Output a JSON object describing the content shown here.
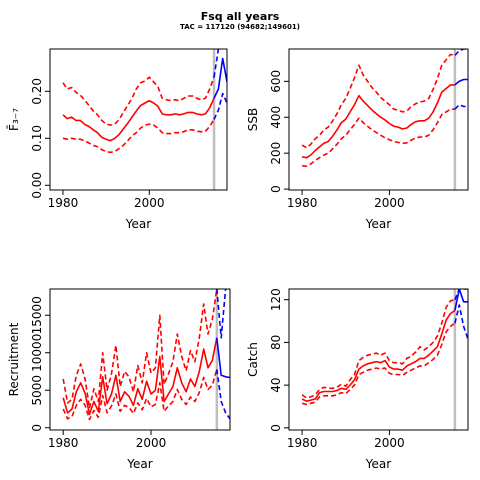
{
  "title": "Fsq all years",
  "subtitle": "TAC = 117120 (94682;149601)",
  "chart_data": [
    {
      "type": "line",
      "ylabel": "F̄₃₋₇",
      "xlabel": "Year",
      "xlim": [
        1977,
        2018
      ],
      "ylim": [
        -0.01,
        0.29
      ],
      "xticks": [
        1980,
        2000
      ],
      "yticks": [
        0.0,
        0.1,
        0.2
      ],
      "ytick_labels": [
        "0.00",
        "0.10",
        "0.20"
      ],
      "assessment_year": 2015,
      "x": [
        1980,
        1981,
        1982,
        1983,
        1984,
        1985,
        1986,
        1987,
        1988,
        1989,
        1990,
        1991,
        1992,
        1993,
        1994,
        1995,
        1996,
        1997,
        1998,
        1999,
        2000,
        2001,
        2002,
        2003,
        2004,
        2005,
        2006,
        2007,
        2008,
        2009,
        2010,
        2011,
        2012,
        2013,
        2014,
        2015
      ],
      "series": [
        {
          "role": "estimate",
          "color": "#ff0000",
          "dash": false,
          "values": [
            0.15,
            0.142,
            0.145,
            0.138,
            0.138,
            0.13,
            0.125,
            0.118,
            0.112,
            0.102,
            0.098,
            0.095,
            0.1,
            0.108,
            0.12,
            0.132,
            0.145,
            0.158,
            0.17,
            0.175,
            0.18,
            0.175,
            0.168,
            0.152,
            0.15,
            0.15,
            0.152,
            0.15,
            0.152,
            0.155,
            0.155,
            0.152,
            0.15,
            0.152,
            0.165,
            0.185
          ]
        },
        {
          "role": "upper",
          "color": "#ff0000",
          "dash": true,
          "values": [
            0.218,
            0.205,
            0.208,
            0.198,
            0.192,
            0.182,
            0.17,
            0.158,
            0.15,
            0.138,
            0.13,
            0.128,
            0.13,
            0.14,
            0.155,
            0.17,
            0.185,
            0.205,
            0.218,
            0.222,
            0.23,
            0.22,
            0.21,
            0.185,
            0.182,
            0.18,
            0.182,
            0.18,
            0.185,
            0.19,
            0.19,
            0.185,
            0.182,
            0.185,
            0.205,
            0.23
          ]
        },
        {
          "role": "lower",
          "color": "#ff0000",
          "dash": true,
          "values": [
            0.1,
            0.098,
            0.1,
            0.098,
            0.098,
            0.095,
            0.09,
            0.085,
            0.082,
            0.076,
            0.072,
            0.07,
            0.072,
            0.078,
            0.085,
            0.095,
            0.105,
            0.112,
            0.122,
            0.128,
            0.13,
            0.128,
            0.122,
            0.112,
            0.11,
            0.11,
            0.112,
            0.112,
            0.114,
            0.118,
            0.118,
            0.115,
            0.114,
            0.115,
            0.125,
            0.14
          ]
        }
      ],
      "projection": {
        "x": [
          2015,
          2016,
          2017,
          2018
        ],
        "series": [
          {
            "role": "estimate",
            "color": "#0000ff",
            "dash": false,
            "values": [
              0.185,
              0.205,
              0.27,
              0.22
            ]
          },
          {
            "role": "upper",
            "color": "#0000ff",
            "dash": true,
            "values": [
              0.23,
              0.29,
              0.3,
              0.3
            ]
          },
          {
            "role": "lower",
            "color": "#0000ff",
            "dash": true,
            "values": [
              0.14,
              0.16,
              0.195,
              0.175
            ]
          }
        ]
      }
    },
    {
      "type": "line",
      "ylabel": "SSB",
      "xlabel": "Year",
      "xlim": [
        1977,
        2018
      ],
      "ylim": [
        -5,
        780
      ],
      "xticks": [
        1980,
        2000
      ],
      "yticks": [
        0,
        200,
        400,
        600
      ],
      "ytick_labels": [
        "0",
        "200",
        "400",
        "600"
      ],
      "assessment_year": 2015,
      "x": [
        1980,
        1981,
        1982,
        1983,
        1984,
        1985,
        1986,
        1987,
        1988,
        1989,
        1990,
        1991,
        1992,
        1993,
        1994,
        1995,
        1996,
        1997,
        1998,
        1999,
        2000,
        2001,
        2002,
        2003,
        2004,
        2005,
        2006,
        2007,
        2008,
        2009,
        2010,
        2011,
        2012,
        2013,
        2014,
        2015
      ],
      "series": [
        {
          "role": "estimate",
          "color": "#ff0000",
          "dash": false,
          "values": [
            180,
            175,
            190,
            215,
            235,
            255,
            265,
            295,
            330,
            370,
            390,
            430,
            470,
            520,
            490,
            465,
            440,
            420,
            400,
            385,
            365,
            350,
            345,
            335,
            340,
            360,
            375,
            380,
            380,
            395,
            430,
            480,
            540,
            560,
            580,
            580
          ]
        },
        {
          "role": "upper",
          "color": "#ff0000",
          "dash": true,
          "values": [
            245,
            230,
            250,
            280,
            300,
            330,
            345,
            380,
            420,
            470,
            505,
            560,
            620,
            690,
            635,
            600,
            565,
            540,
            510,
            490,
            470,
            445,
            440,
            430,
            435,
            460,
            475,
            485,
            490,
            505,
            555,
            615,
            690,
            720,
            750,
            745
          ]
        },
        {
          "role": "lower",
          "color": "#ff0000",
          "dash": true,
          "values": [
            130,
            128,
            140,
            160,
            175,
            190,
            200,
            225,
            250,
            280,
            300,
            330,
            360,
            395,
            370,
            350,
            330,
            315,
            300,
            285,
            275,
            265,
            260,
            255,
            258,
            272,
            285,
            290,
            290,
            300,
            330,
            370,
            415,
            430,
            445,
            445
          ]
        }
      ],
      "projection": {
        "x": [
          2015,
          2016,
          2017,
          2018
        ],
        "series": [
          {
            "role": "estimate",
            "color": "#0000ff",
            "dash": false,
            "values": [
              580,
              600,
              610,
              610
            ]
          },
          {
            "role": "upper",
            "color": "#0000ff",
            "dash": true,
            "values": [
              745,
              770,
              780,
              780
            ]
          },
          {
            "role": "lower",
            "color": "#0000ff",
            "dash": true,
            "values": [
              445,
              470,
              460,
              460
            ]
          }
        ]
      }
    },
    {
      "type": "line",
      "ylabel": "Recruitment",
      "xlabel": "Year",
      "xlim": [
        1977,
        2018
      ],
      "ylim": [
        -300,
        18500
      ],
      "xticks": [
        1980,
        2000
      ],
      "yticks": [
        0,
        5000,
        10000,
        15000
      ],
      "ytick_labels": [
        "0",
        "5000",
        "10000",
        "15000"
      ],
      "assessment_year": 2015,
      "x": [
        1980,
        1981,
        1982,
        1983,
        1984,
        1985,
        1986,
        1987,
        1988,
        1989,
        1990,
        1991,
        1992,
        1993,
        1994,
        1995,
        1996,
        1997,
        1998,
        1999,
        2000,
        2001,
        2002,
        2003,
        2004,
        2005,
        2006,
        2007,
        2008,
        2009,
        2010,
        2011,
        2012,
        2013,
        2014,
        2015
      ],
      "series": [
        {
          "role": "estimate",
          "color": "#ff0000",
          "dash": false,
          "values": [
            4000,
            2000,
            2500,
            4800,
            6000,
            4600,
            1800,
            3500,
            2200,
            6800,
            3200,
            4500,
            7000,
            3500,
            4800,
            4200,
            3000,
            5200,
            3800,
            6200,
            4500,
            5000,
            9500,
            3500,
            4500,
            5500,
            8000,
            6000,
            4800,
            6500,
            5500,
            7500,
            10500,
            8000,
            9000,
            12000
          ]
        },
        {
          "role": "upper",
          "color": "#ff0000",
          "dash": true,
          "values": [
            6500,
            3300,
            3800,
            7000,
            8500,
            6500,
            2600,
            5200,
            3500,
            10000,
            5000,
            7200,
            11000,
            5500,
            7500,
            6800,
            4800,
            8300,
            6000,
            10000,
            7300,
            8000,
            15000,
            5800,
            7200,
            8800,
            12500,
            9500,
            7600,
            10300,
            8800,
            12000,
            16500,
            12500,
            14500,
            18500
          ]
        },
        {
          "role": "lower",
          "color": "#ff0000",
          "dash": true,
          "values": [
            2500,
            1200,
            1500,
            3000,
            3800,
            3000,
            1100,
            2300,
            1400,
            4300,
            2000,
            2900,
            4500,
            2200,
            3000,
            2700,
            1900,
            3300,
            2400,
            3900,
            2800,
            3100,
            6000,
            2200,
            2900,
            3500,
            5100,
            3800,
            3100,
            4100,
            3500,
            4700,
            6700,
            5100,
            5700,
            7800
          ]
        }
      ],
      "projection": {
        "x": [
          2015,
          2016,
          2017,
          2018
        ],
        "series": [
          {
            "role": "estimate",
            "color": "#0000ff",
            "dash": false,
            "values": [
              12000,
              7000,
              6800,
              6700
            ]
          },
          {
            "role": "upper",
            "color": "#0000ff",
            "dash": true,
            "values": [
              18500,
              12000,
              18500,
              null
            ]
          },
          {
            "role": "lower",
            "color": "#0000ff",
            "dash": true,
            "values": [
              7800,
              3500,
              2000,
              1200
            ]
          }
        ]
      }
    },
    {
      "type": "line",
      "ylabel": "Catch",
      "xlabel": "Year",
      "xlim": [
        1977,
        2018
      ],
      "ylim": [
        -2,
        130
      ],
      "xticks": [
        1980,
        2000
      ],
      "yticks": [
        0,
        40,
        80,
        120
      ],
      "ytick_labels": [
        "0",
        "40",
        "80",
        "120"
      ],
      "assessment_year": 2015,
      "x": [
        1980,
        1981,
        1982,
        1983,
        1984,
        1985,
        1986,
        1987,
        1988,
        1989,
        1990,
        1991,
        1992,
        1993,
        1994,
        1995,
        1996,
        1997,
        1998,
        1999,
        2000,
        2001,
        2002,
        2003,
        2004,
        2005,
        2006,
        2007,
        2008,
        2009,
        2010,
        2011,
        2012,
        2013,
        2014,
        2015
      ],
      "series": [
        {
          "role": "estimate",
          "color": "#ff0000",
          "dash": false,
          "values": [
            27,
            25,
            26,
            27,
            33,
            34,
            34,
            34,
            35,
            37,
            36,
            40,
            45,
            55,
            58,
            60,
            61,
            62,
            61,
            63,
            57,
            55,
            55,
            54,
            58,
            60,
            62,
            65,
            65,
            68,
            72,
            76,
            88,
            101,
            107,
            110
          ]
        },
        {
          "role": "upper",
          "color": "#ff0000",
          "dash": true,
          "values": [
            31,
            28,
            29,
            31,
            36,
            38,
            37,
            37,
            38,
            41,
            39,
            45,
            50,
            63,
            66,
            68,
            69,
            70,
            68,
            70,
            63,
            61,
            61,
            60,
            65,
            67,
            71,
            76,
            73,
            76,
            80,
            86,
            98,
            113,
            119,
            120
          ]
        },
        {
          "role": "lower",
          "color": "#ff0000",
          "dash": true,
          "values": [
            23,
            22,
            23,
            24,
            29,
            30,
            30,
            30,
            31,
            33,
            32,
            36,
            40,
            50,
            52,
            54,
            55,
            56,
            55,
            56,
            51,
            50,
            50,
            49,
            52,
            54,
            56,
            58,
            58,
            61,
            64,
            68,
            78,
            90,
            95,
            98
          ]
        }
      ],
      "projection": {
        "x": [
          2015,
          2016,
          2017,
          2018
        ],
        "series": [
          {
            "role": "estimate",
            "color": "#0000ff",
            "dash": false,
            "values": [
              110,
              130,
              118,
              118
            ]
          },
          {
            "role": "upper",
            "color": "#0000ff",
            "dash": true,
            "values": [
              120,
              130,
              130,
              130
            ]
          },
          {
            "role": "lower",
            "color": "#0000ff",
            "dash": true,
            "values": [
              98,
              115,
              95,
              83
            ]
          }
        ]
      }
    }
  ]
}
